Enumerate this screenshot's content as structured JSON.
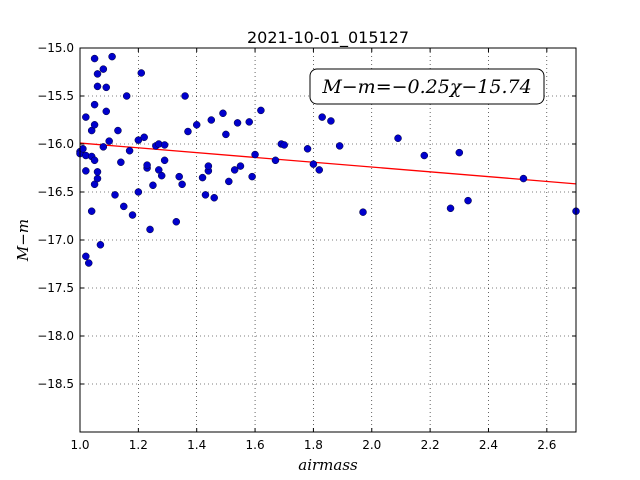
{
  "chart_data": {
    "type": "scatter",
    "title": "2021-10-01_015127",
    "xlabel": "airmass",
    "ylabel": "M−m",
    "xlim": [
      1.0,
      2.7
    ],
    "ylim": [
      -19.0,
      -15.0
    ],
    "y_inverted": true,
    "grid": true,
    "x_ticks": [
      1.0,
      1.2,
      1.4,
      1.6,
      1.8,
      2.0,
      2.2,
      2.4,
      2.6
    ],
    "x_tick_labels": [
      "1.0",
      "1.2",
      "1.4",
      "1.6",
      "1.8",
      "2.0",
      "2.2",
      "2.4",
      "2.6"
    ],
    "y_ticks": [
      -15.0,
      -15.5,
      -16.0,
      -16.5,
      -17.0,
      -17.5,
      -18.0,
      -18.5
    ],
    "y_tick_labels": [
      "−15.0",
      "−15.5",
      "−16.0",
      "−16.5",
      "−17.0",
      "−17.5",
      "−18.0",
      "−18.5"
    ],
    "annotation": "M−m=−0.25χ−15.74",
    "annotation_position": "top-right",
    "fit_line": {
      "slope": -0.25,
      "intercept": -15.74,
      "color": "#ff0000"
    },
    "point_color": "#0000cc",
    "points": [
      [
        1.0,
        -16.08
      ],
      [
        1.0,
        -16.1
      ],
      [
        1.01,
        -16.05
      ],
      [
        1.02,
        -15.72
      ],
      [
        1.02,
        -16.12
      ],
      [
        1.02,
        -16.28
      ],
      [
        1.02,
        -17.17
      ],
      [
        1.03,
        -17.24
      ],
      [
        1.04,
        -15.86
      ],
      [
        1.04,
        -16.7
      ],
      [
        1.04,
        -16.13
      ],
      [
        1.05,
        -15.11
      ],
      [
        1.05,
        -15.8
      ],
      [
        1.05,
        -15.59
      ],
      [
        1.05,
        -16.17
      ],
      [
        1.05,
        -16.42
      ],
      [
        1.06,
        -15.27
      ],
      [
        1.06,
        -15.4
      ],
      [
        1.06,
        -16.36
      ],
      [
        1.06,
        -16.29
      ],
      [
        1.07,
        -17.05
      ],
      [
        1.08,
        -16.03
      ],
      [
        1.08,
        -15.22
      ],
      [
        1.09,
        -15.41
      ],
      [
        1.09,
        -15.66
      ],
      [
        1.1,
        -15.97
      ],
      [
        1.11,
        -15.09
      ],
      [
        1.12,
        -16.53
      ],
      [
        1.13,
        -15.86
      ],
      [
        1.14,
        -16.19
      ],
      [
        1.15,
        -16.65
      ],
      [
        1.16,
        -15.5
      ],
      [
        1.17,
        -16.07
      ],
      [
        1.18,
        -16.74
      ],
      [
        1.2,
        -15.96
      ],
      [
        1.2,
        -16.5
      ],
      [
        1.21,
        -15.26
      ],
      [
        1.22,
        -15.93
      ],
      [
        1.23,
        -16.25
      ],
      [
        1.23,
        -16.22
      ],
      [
        1.24,
        -16.89
      ],
      [
        1.25,
        -16.43
      ],
      [
        1.26,
        -16.02
      ],
      [
        1.27,
        -16.0
      ],
      [
        1.27,
        -16.27
      ],
      [
        1.28,
        -16.33
      ],
      [
        1.29,
        -16.01
      ],
      [
        1.29,
        -16.17
      ],
      [
        1.33,
        -16.81
      ],
      [
        1.34,
        -16.34
      ],
      [
        1.35,
        -16.42
      ],
      [
        1.36,
        -15.5
      ],
      [
        1.37,
        -15.87
      ],
      [
        1.4,
        -15.8
      ],
      [
        1.42,
        -16.35
      ],
      [
        1.43,
        -16.53
      ],
      [
        1.44,
        -16.28
      ],
      [
        1.44,
        -16.23
      ],
      [
        1.45,
        -15.75
      ],
      [
        1.46,
        -16.56
      ],
      [
        1.49,
        -15.68
      ],
      [
        1.5,
        -15.9
      ],
      [
        1.51,
        -16.39
      ],
      [
        1.53,
        -16.27
      ],
      [
        1.54,
        -15.78
      ],
      [
        1.55,
        -16.23
      ],
      [
        1.58,
        -15.77
      ],
      [
        1.59,
        -16.34
      ],
      [
        1.6,
        -16.11
      ],
      [
        1.62,
        -15.65
      ],
      [
        1.67,
        -16.17
      ],
      [
        1.69,
        -16.0
      ],
      [
        1.7,
        -16.01
      ],
      [
        1.78,
        -16.05
      ],
      [
        1.8,
        -16.21
      ],
      [
        1.82,
        -16.27
      ],
      [
        1.83,
        -15.72
      ],
      [
        1.86,
        -15.76
      ],
      [
        1.89,
        -16.02
      ],
      [
        1.97,
        -16.71
      ],
      [
        2.09,
        -15.94
      ],
      [
        2.18,
        -16.12
      ],
      [
        2.27,
        -16.67
      ],
      [
        2.3,
        -16.09
      ],
      [
        2.33,
        -16.59
      ],
      [
        2.52,
        -16.36
      ],
      [
        2.7,
        -16.7
      ]
    ]
  }
}
